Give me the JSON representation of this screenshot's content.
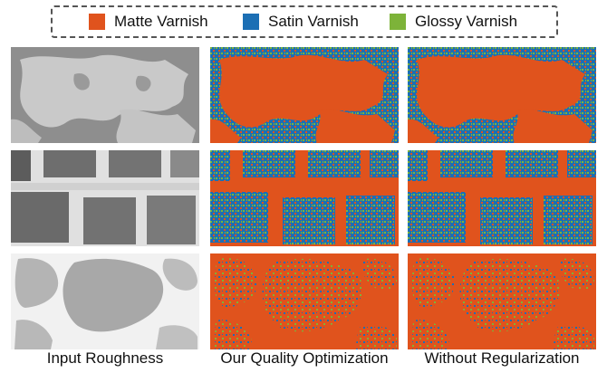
{
  "legend": {
    "matte": {
      "label": "Matte Varnish",
      "color": "#e0531d"
    },
    "satin": {
      "label": "Satin Varnish",
      "color": "#1c6fb4"
    },
    "glossy": {
      "label": "Glossy Varnish",
      "color": "#7db339"
    }
  },
  "captions": {
    "input": "Input Roughness",
    "quality": "Our Quality Optimization",
    "noreg": "Without Regularization"
  },
  "rows": [
    {
      "content": "irregular-patches"
    },
    {
      "content": "brick-wall"
    },
    {
      "content": "stone-pavement"
    }
  ]
}
